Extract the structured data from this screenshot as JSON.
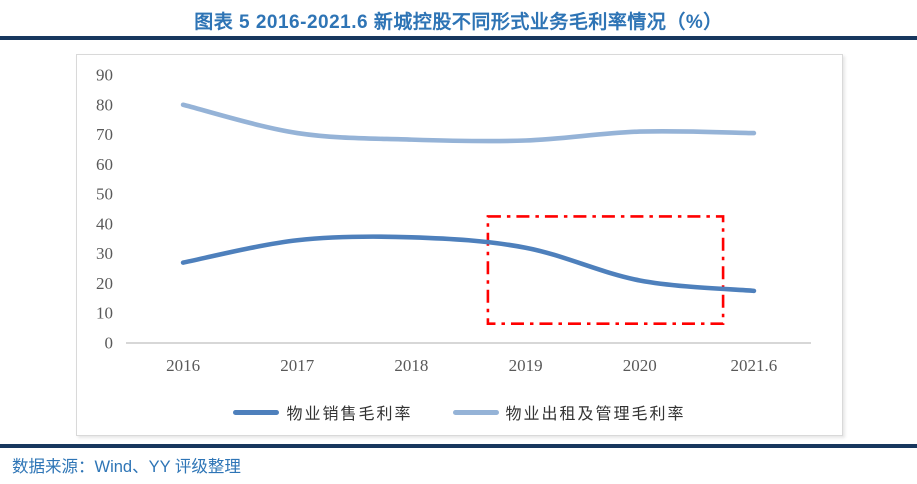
{
  "page": {
    "title": "图表 5 2016-2021.6 新城控股不同形式业务毛利率情况（%）",
    "source_note": "数据来源：Wind、YY 评级整理",
    "colors": {
      "title_blue": "#2E74B5",
      "rule_navy": "#17375E",
      "source_blue": "#2E75B6",
      "axis_text": "#595959",
      "axis_line": "#BFBFBF",
      "chart_border": "#D9D9D9"
    }
  },
  "chart_data": {
    "type": "line",
    "title": "图表 5 2016-2021.6 新城控股不同形式业务毛利率情况（%）",
    "categories": [
      "2016",
      "2017",
      "2018",
      "2019",
      "2020",
      "2021.6"
    ],
    "series": [
      {
        "name": "物业销售毛利率",
        "color": "#4E80BC",
        "values": [
          27,
          34.5,
          35.5,
          32,
          21,
          17.5
        ]
      },
      {
        "name": "物业出租及管理毛利率",
        "color": "#95B3D7",
        "values": [
          80,
          70.5,
          68.3,
          68,
          71,
          70.5
        ]
      }
    ],
    "ylim": [
      0,
      90
    ],
    "yticks": [
      0,
      10,
      20,
      30,
      40,
      50,
      60,
      70,
      80,
      90
    ],
    "grid": false,
    "legend_position": "bottom",
    "annotation_box": {
      "shape": "dash-dot-rect",
      "color": "#FF0000",
      "x_from_category": 3.17,
      "x_to_category": 5.23,
      "y_from": 6.5,
      "y_to": 42.5
    }
  }
}
